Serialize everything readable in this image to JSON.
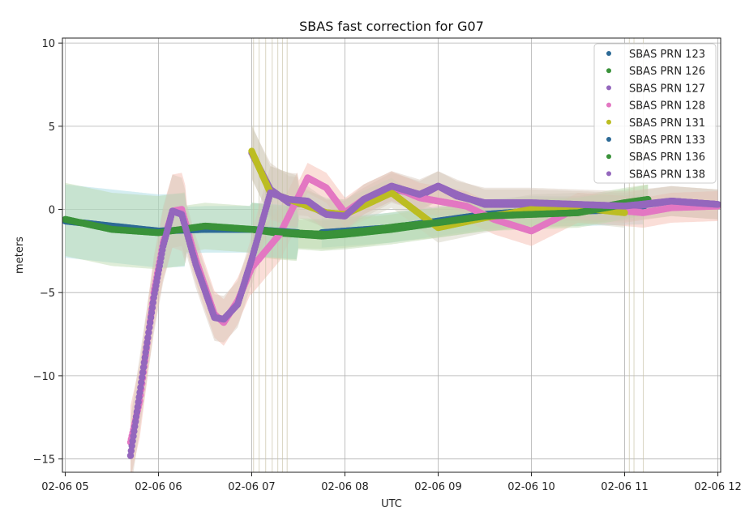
{
  "chart_data": {
    "type": "scatter",
    "title": "SBAS fast correction for G07",
    "xlabel": "UTC",
    "ylabel": "meters",
    "x_unit": "hours since 02-06 05:00",
    "xlim": [
      -0.03,
      7.03
    ],
    "ylim": [
      -15.8,
      10.3
    ],
    "x_ticks": [
      {
        "value": 0,
        "label": "02-06 05"
      },
      {
        "value": 1,
        "label": "02-06 06"
      },
      {
        "value": 2,
        "label": "02-06 07"
      },
      {
        "value": 3,
        "label": "02-06 08"
      },
      {
        "value": 4,
        "label": "02-06 09"
      },
      {
        "value": 5,
        "label": "02-06 10"
      },
      {
        "value": 6,
        "label": "02-06 11"
      },
      {
        "value": 7,
        "label": "02-06 12"
      }
    ],
    "y_ticks": [
      {
        "value": 10,
        "label": "10"
      },
      {
        "value": 5,
        "label": "5"
      },
      {
        "value": 0,
        "label": "0"
      },
      {
        "value": -5,
        "label": "−5"
      },
      {
        "value": -10,
        "label": "−10"
      },
      {
        "value": -15,
        "label": "−15"
      }
    ],
    "grid": true,
    "legend_position": "top-right",
    "series": [
      {
        "name": "SBAS PRN 123",
        "color": "#2d6a96",
        "band_color": "#9fd8df",
        "x": [
          2.75,
          3.0,
          3.5,
          4.0,
          4.5,
          5.0,
          5.5,
          6.2
        ],
        "y": [
          -1.4,
          -1.3,
          -1.1,
          -0.7,
          -0.3,
          -0.1,
          -0.1,
          0.0
        ]
      },
      {
        "name": "SBAS PRN 126",
        "color": "#3a923a",
        "band_color": "#b7d7a8",
        "x": [
          2.0,
          2.25,
          2.5,
          2.75,
          3.0,
          3.5,
          4.0,
          4.5,
          5.0,
          5.5,
          6.0,
          6.25
        ],
        "y": [
          -1.2,
          -1.4,
          -1.5,
          -1.6,
          -1.5,
          -1.2,
          -0.8,
          -0.4,
          -0.2,
          -0.1,
          0.4,
          0.6
        ]
      },
      {
        "name": "SBAS PRN 127",
        "color": "#9467bd",
        "band_color": "#d4c6b8",
        "x": [
          2.0,
          2.2,
          2.4,
          2.6,
          2.8,
          3.0,
          3.2,
          3.5,
          3.8,
          4.0,
          4.2,
          4.5,
          5.0,
          5.5,
          6.0,
          6.5,
          7.0
        ],
        "y": [
          3.4,
          1.2,
          0.4,
          0.3,
          -0.3,
          -0.3,
          0.4,
          1.3,
          0.8,
          1.4,
          0.9,
          0.3,
          0.3,
          0.2,
          0.1,
          0.5,
          0.3
        ]
      },
      {
        "name": "SBAS PRN 128",
        "color": "#e377c2",
        "band_color": "#f4b6a8",
        "x": [
          0.7,
          0.8,
          0.95,
          1.05,
          1.15,
          1.25,
          1.4,
          1.6,
          1.7,
          1.85,
          2.0,
          2.3,
          2.6,
          2.8,
          3.0,
          3.2,
          3.5,
          3.8,
          4.0,
          4.3,
          4.6,
          5.0,
          5.5,
          5.8,
          6.2,
          6.5,
          7.0
        ],
        "y": [
          -14.0,
          -11.5,
          -5.0,
          -2.0,
          -0.1,
          0.0,
          -3.0,
          -6.3,
          -6.8,
          -5.5,
          -3.5,
          -1.5,
          1.9,
          1.3,
          -0.2,
          0.6,
          1.4,
          0.7,
          0.5,
          0.2,
          -0.6,
          -1.3,
          0.1,
          0.0,
          -0.2,
          0.1,
          0.2
        ]
      },
      {
        "name": "SBAS PRN 131",
        "color": "#bcbd22",
        "band_color": "#d1cebd",
        "x": [
          2.0,
          2.2,
          2.5,
          2.8,
          3.0,
          3.5,
          4.0,
          4.5,
          5.0,
          5.5,
          6.0
        ],
        "y": [
          3.5,
          1.0,
          0.4,
          -0.2,
          -0.3,
          1.0,
          -1.1,
          -0.5,
          0.0,
          0.1,
          -0.2
        ]
      },
      {
        "name": "SBAS PRN 133",
        "color": "#2d6a96",
        "band_color": "#9fd8df",
        "x": [
          0.0,
          0.5,
          1.0,
          1.5,
          2.0,
          2.5
        ],
        "y": [
          -0.7,
          -1.0,
          -1.3,
          -1.2,
          -1.2,
          -1.4
        ]
      },
      {
        "name": "SBAS PRN 136",
        "color": "#3a923a",
        "band_color": "#b7d7a8",
        "x": [
          0.0,
          0.5,
          1.0,
          1.5,
          2.0,
          2.4,
          2.8,
          3.2,
          3.6,
          4.0,
          4.5,
          5.0,
          5.5,
          6.0,
          6.25
        ],
        "y": [
          -0.6,
          -1.2,
          -1.4,
          -1.0,
          -1.2,
          -1.4,
          -1.5,
          -1.3,
          -1.0,
          -0.8,
          -0.4,
          -0.3,
          -0.2,
          0.3,
          0.6
        ]
      },
      {
        "name": "SBAS PRN 138",
        "color": "#9467bd",
        "band_color": "#d4c6b8",
        "x": [
          0.7,
          0.8,
          0.95,
          1.05,
          1.15,
          1.25,
          1.4,
          1.6,
          1.7,
          1.85,
          2.0,
          2.2,
          2.4,
          2.6,
          2.8,
          3.0,
          3.2,
          3.5,
          3.8,
          4.0,
          4.2,
          4.5,
          5.0,
          5.5,
          6.0,
          6.5,
          7.0
        ],
        "y": [
          -14.8,
          -11.0,
          -5.3,
          -2.2,
          -0.1,
          -0.3,
          -3.3,
          -6.5,
          -6.6,
          -5.7,
          -3.0,
          1.0,
          0.6,
          0.5,
          -0.3,
          -0.4,
          0.6,
          1.4,
          0.9,
          1.4,
          0.8,
          0.4,
          0.4,
          0.3,
          0.2,
          0.5,
          0.3
        ]
      }
    ]
  }
}
